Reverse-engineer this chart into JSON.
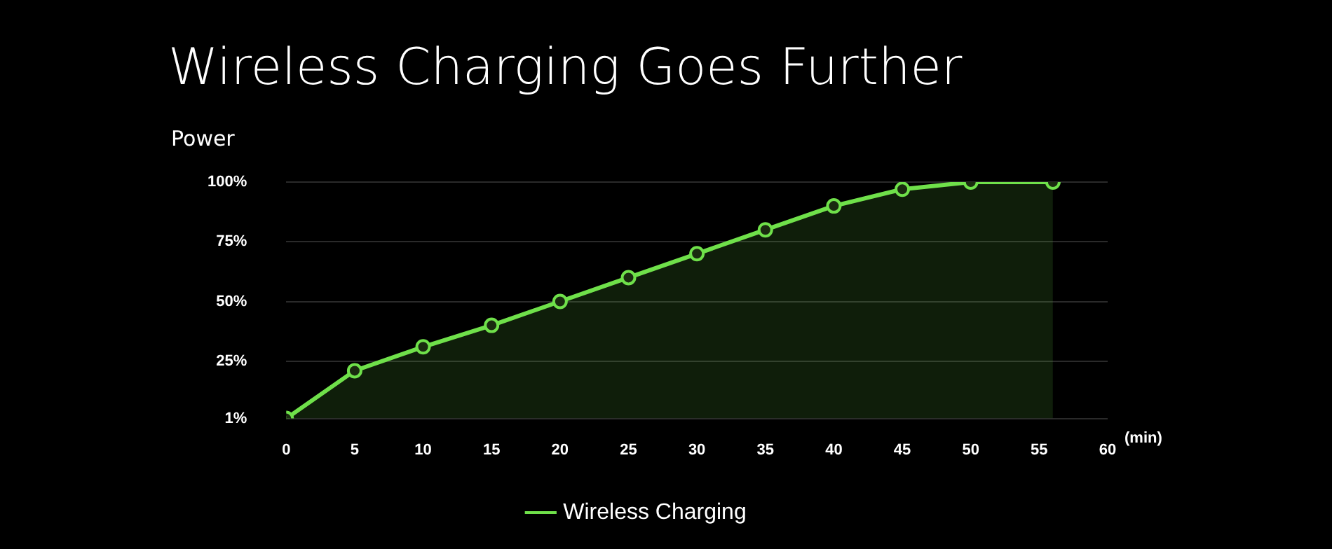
{
  "chart_data": {
    "type": "area",
    "title": "Wireless Charging Goes Further",
    "ylabel": "Power",
    "xlabel": "(min)",
    "x": [
      0,
      5,
      10,
      15,
      20,
      25,
      30,
      35,
      40,
      45,
      50,
      56
    ],
    "series": [
      {
        "name": "Wireless Charging",
        "color": "#6fe04a",
        "values": [
          1,
          21,
          31,
          40,
          50,
          60,
          70,
          80,
          90,
          97,
          100,
          100
        ]
      }
    ],
    "xlim": [
      0,
      60
    ],
    "xticks": [
      0,
      5,
      10,
      15,
      20,
      25,
      30,
      35,
      40,
      45,
      50,
      55,
      60
    ],
    "ylim": [
      1,
      100
    ],
    "yticks": [
      {
        "value": 1,
        "label": "1%"
      },
      {
        "value": 25,
        "label": "25%"
      },
      {
        "value": 50,
        "label": "50%"
      },
      {
        "value": 75,
        "label": "75%"
      },
      {
        "value": 100,
        "label": "100%"
      }
    ],
    "grid": "y",
    "legend": "bottom",
    "marker": "circle",
    "line_style": "solid"
  }
}
